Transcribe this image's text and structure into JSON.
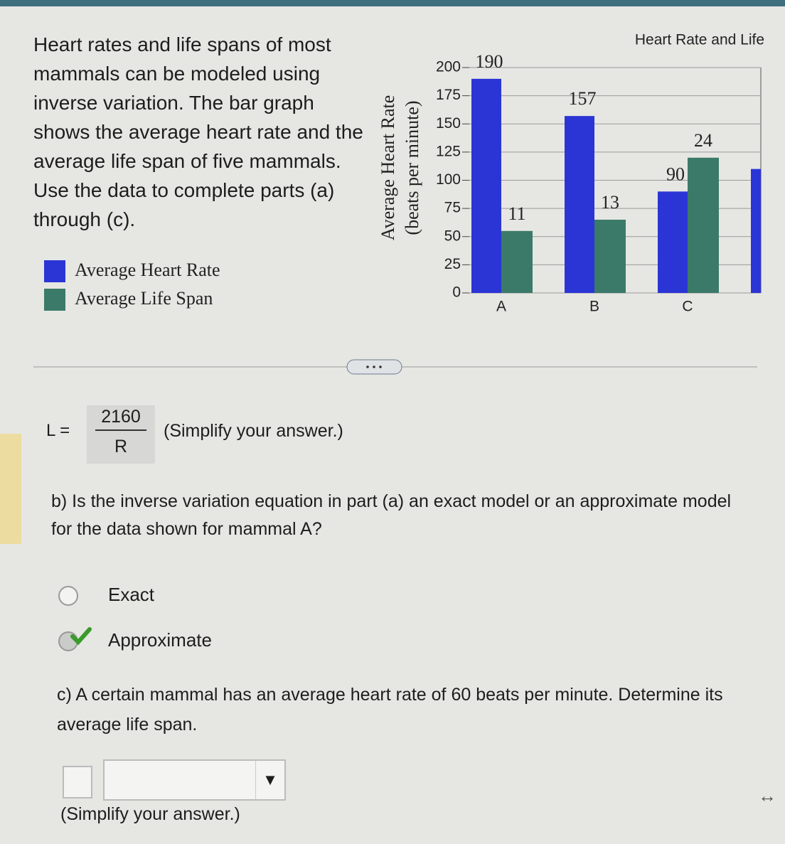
{
  "intro": "Heart rates and life spans of most mammals can be modeled using inverse variation. The bar graph shows the average heart rate and the average life span of five mammals. Use the data to complete parts (a) through (c).",
  "chart_data": {
    "type": "bar",
    "title": "Heart Rate and Life",
    "y_label": "Average Heart Rate",
    "y_label_unit": "(beats per minute)",
    "categories": [
      "A",
      "B",
      "C",
      null
    ],
    "series": [
      {
        "name": "Average Heart Rate",
        "color": "#2b35d6",
        "values": [
          190,
          157,
          90,
          110
        ]
      },
      {
        "name": "Average Life Span",
        "color": "#3b7a68",
        "values": [
          11,
          13,
          24,
          null
        ],
        "axis": "y2"
      }
    ],
    "ylim": [
      0,
      200
    ],
    "yticks": [
      0,
      25,
      50,
      75,
      100,
      125,
      150,
      175,
      200
    ],
    "y2lim": [
      0,
      40
    ],
    "grid": true
  },
  "part_a": {
    "lhs": "L =",
    "numerator": "2160",
    "denominator": "R",
    "hint": "(Simplify your answer.)"
  },
  "part_b": {
    "question": "b) Is the inverse variation equation in part (a) an exact model or an approximate model for the data shown for mammal A?",
    "options": [
      {
        "label": "Exact",
        "selected": false
      },
      {
        "label": "Approximate",
        "selected": true
      }
    ]
  },
  "part_c": {
    "question": "c) A certain mammal has an average heart rate of 60 beats per minute. Determine its average life span.",
    "hint": "(Simplify your answer.)"
  }
}
